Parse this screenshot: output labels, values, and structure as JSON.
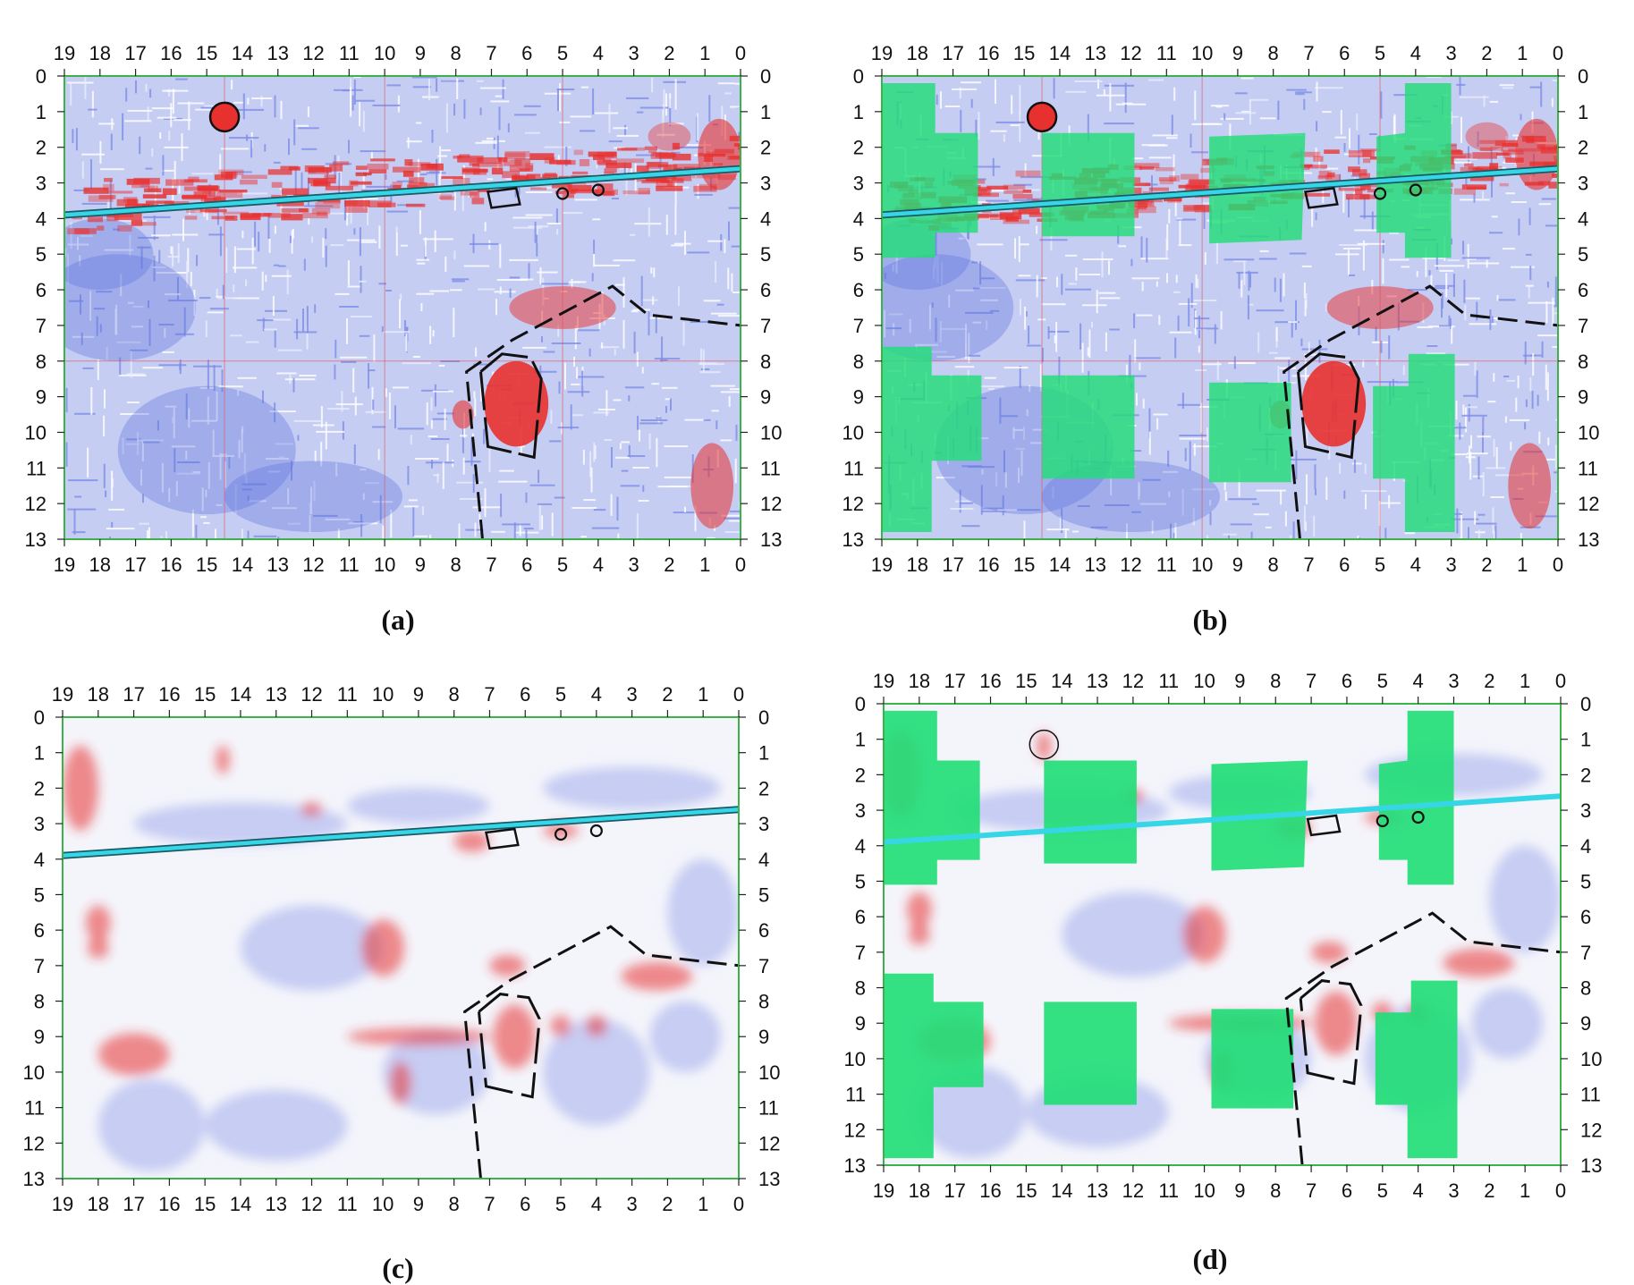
{
  "figure": {
    "panels": [
      {
        "id": "a",
        "caption": "(a)",
        "style": "high",
        "green_areas": false,
        "red_circle": true
      },
      {
        "id": "b",
        "caption": "(b)",
        "style": "high",
        "green_areas": true,
        "red_circle": true
      },
      {
        "id": "c",
        "caption": "(c)",
        "style": "smooth",
        "green_areas": false,
        "red_circle": false
      },
      {
        "id": "d",
        "caption": "(d)",
        "style": "smooth",
        "green_areas": true,
        "red_circle": false
      }
    ],
    "x_axis": {
      "ticks": [
        19,
        18,
        17,
        16,
        15,
        14,
        13,
        12,
        11,
        10,
        9,
        8,
        7,
        6,
        5,
        4,
        3,
        2,
        1,
        0
      ],
      "range": [
        19,
        0
      ]
    },
    "y_axis": {
      "ticks": [
        0,
        1,
        2,
        3,
        4,
        5,
        6,
        7,
        8,
        9,
        10,
        11,
        12,
        13
      ],
      "range": [
        0,
        13
      ]
    },
    "colors": {
      "positive": "#e8312f",
      "negative": "#4a62d8",
      "pipe_line": "#37d6e6",
      "green_area": "#22dd77",
      "frame": "#3cb34a",
      "outline": "#111111"
    },
    "features": {
      "pipe": {
        "from": [
          19,
          3.9
        ],
        "to": [
          0,
          2.6
        ]
      },
      "small_rect": [
        [
          7.1,
          3.25
        ],
        [
          6.3,
          3.15
        ],
        [
          6.2,
          3.6
        ],
        [
          7.0,
          3.7
        ]
      ],
      "small_circles": [
        [
          5.0,
          3.3
        ],
        [
          4.0,
          3.2
        ]
      ],
      "red_circle": {
        "x": 14.5,
        "y": 1.15,
        "r": 0.4
      },
      "dashed_outer": [
        [
          7.25,
          13.0
        ],
        [
          7.7,
          8.3
        ],
        [
          6.4,
          7.4
        ],
        [
          3.6,
          5.9
        ],
        [
          2.6,
          6.7
        ],
        [
          0,
          7.0
        ]
      ],
      "solid_inner": [
        [
          7.3,
          8.3
        ],
        [
          6.7,
          7.8
        ],
        [
          5.9,
          7.9
        ],
        [
          5.6,
          8.5
        ],
        [
          5.8,
          10.7
        ],
        [
          7.1,
          10.4
        ],
        [
          7.3,
          8.3
        ]
      ],
      "green_blocks": [
        [
          [
            19,
            0.2
          ],
          [
            17.5,
            0.2
          ],
          [
            17.5,
            1.6
          ],
          [
            16.3,
            1.6
          ],
          [
            16.3,
            4.4
          ],
          [
            17.5,
            4.4
          ],
          [
            17.5,
            5.1
          ],
          [
            19,
            5.1
          ]
        ],
        [
          [
            19,
            7.6
          ],
          [
            17.6,
            7.6
          ],
          [
            17.6,
            8.4
          ],
          [
            16.2,
            8.4
          ],
          [
            16.2,
            10.8
          ],
          [
            17.6,
            10.8
          ],
          [
            17.6,
            12.8
          ],
          [
            19,
            12.8
          ]
        ],
        [
          [
            14.5,
            1.6
          ],
          [
            11.9,
            1.6
          ],
          [
            11.9,
            4.5
          ],
          [
            14.5,
            4.5
          ]
        ],
        [
          [
            14.5,
            8.4
          ],
          [
            11.9,
            8.4
          ],
          [
            11.9,
            11.3
          ],
          [
            14.5,
            11.3
          ]
        ],
        [
          [
            9.8,
            1.7
          ],
          [
            7.1,
            1.6
          ],
          [
            7.2,
            4.6
          ],
          [
            9.8,
            4.7
          ]
        ],
        [
          [
            9.8,
            8.6
          ],
          [
            7.5,
            8.6
          ],
          [
            7.5,
            11.4
          ],
          [
            9.8,
            11.4
          ]
        ],
        [
          [
            5.1,
            1.7
          ],
          [
            4.3,
            1.6
          ],
          [
            4.3,
            0.2
          ],
          [
            3.0,
            0.2
          ],
          [
            3.0,
            5.1
          ],
          [
            4.3,
            5.1
          ],
          [
            4.3,
            4.4
          ],
          [
            5.1,
            4.4
          ]
        ],
        [
          [
            4.2,
            7.8
          ],
          [
            2.9,
            7.8
          ],
          [
            2.9,
            12.8
          ],
          [
            4.3,
            12.8
          ],
          [
            4.3,
            11.3
          ],
          [
            5.2,
            11.3
          ],
          [
            5.2,
            8.7
          ],
          [
            4.2,
            8.7
          ]
        ]
      ]
    }
  }
}
